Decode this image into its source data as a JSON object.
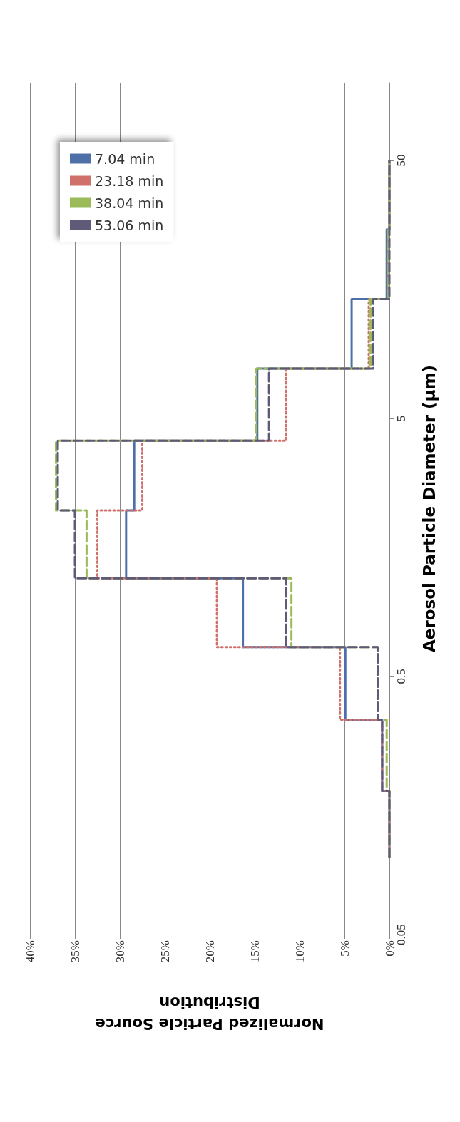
{
  "chart_data": {
    "type": "step",
    "orientation": "horizontal",
    "xlabel": "Normalized Particle Source\nDistribution",
    "ylabel": "Aerosol Particle Diameter (µm)",
    "x": [
      0.1,
      0.18,
      0.34,
      0.65,
      1.2,
      2.2,
      4.1,
      7.8,
      14.5,
      27,
      50
    ],
    "series": [
      {
        "name": "7.04 min",
        "color": "#4f6fa8",
        "line_style": "solid",
        "values": [
          0,
          0.8,
          4.9,
          16.3,
          29.3,
          28.4,
          14.7,
          4.2,
          0.3,
          0,
          0
        ]
      },
      {
        "name": "23.18 min",
        "color": "#d0706a",
        "line_style": "dotted",
        "values": [
          0,
          0.8,
          5.5,
          19.2,
          32.5,
          27.5,
          11.5,
          2.3,
          0.1,
          0,
          0
        ]
      },
      {
        "name": "38.04 min",
        "color": "#9bbb59",
        "line_style": "dashed",
        "values": [
          0,
          0.3,
          1.3,
          10.9,
          33.7,
          37.1,
          14.8,
          2.1,
          0.1,
          0,
          0
        ]
      },
      {
        "name": "53.06 min",
        "color": "#5f5a78",
        "line_style": "dashed",
        "values": [
          0,
          0.8,
          1.3,
          11.5,
          35.0,
          36.9,
          13.4,
          1.8,
          0,
          0,
          0
        ]
      }
    ],
    "log": "y",
    "ylim": [
      0.05,
      100
    ],
    "yticks": [
      0.05,
      0.5,
      5,
      50
    ],
    "xlim": [
      40,
      0
    ],
    "xticks": [
      {
        "value": 40,
        "label": "40%"
      },
      {
        "value": 35,
        "label": "35%"
      },
      {
        "value": 30,
        "label": "30%"
      },
      {
        "value": 25,
        "label": "25%"
      },
      {
        "value": 20,
        "label": "20%"
      },
      {
        "value": 15,
        "label": "15%"
      },
      {
        "value": 10,
        "label": "10%"
      },
      {
        "value": 5,
        "label": "5%"
      },
      {
        "value": 0,
        "label": "0%"
      }
    ],
    "grid": "x",
    "legend": "top left"
  }
}
